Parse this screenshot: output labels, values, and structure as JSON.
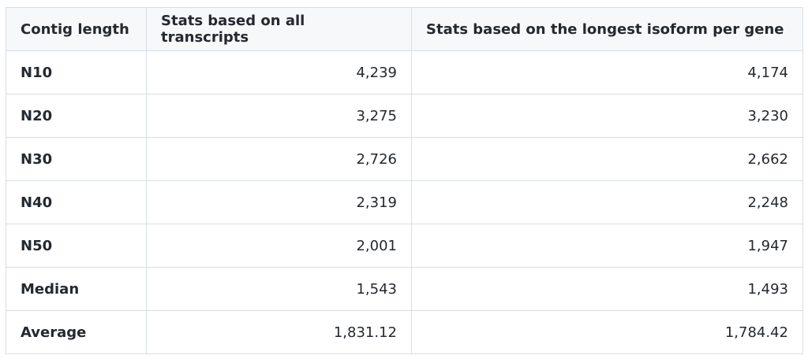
{
  "table": {
    "header": [
      "Contig length",
      "Stats based on all transcripts",
      "Stats based on the longest isoform per gene"
    ],
    "rows": [
      [
        "N10",
        "4,239",
        "4,174"
      ],
      [
        "N20",
        "3,275",
        "3,230"
      ],
      [
        "N30",
        "2,726",
        "2,662"
      ],
      [
        "N40",
        "2,319",
        "2,248"
      ],
      [
        "N50",
        "2,001",
        "1,947"
      ],
      [
        "Median",
        "1,543",
        "1,493"
      ],
      [
        "Average",
        "1,831.12",
        "1,784.42"
      ]
    ]
  }
}
